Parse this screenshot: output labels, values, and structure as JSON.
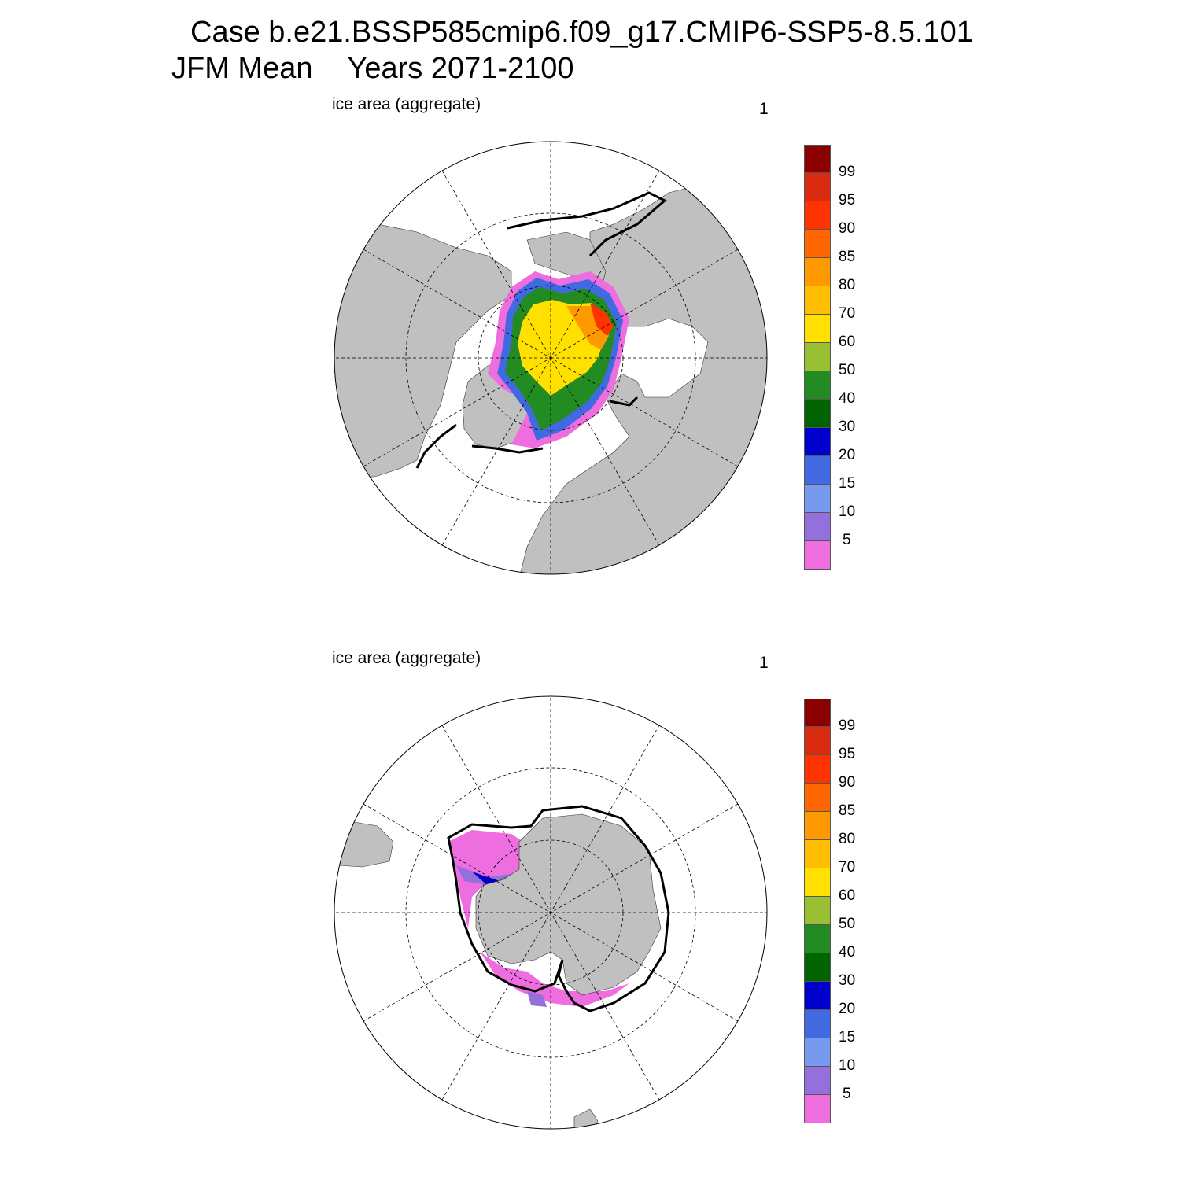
{
  "title": {
    "line1": "Case b.e21.BSSP585cmip6.f09_g17.CMIP6-SSP5-8.5.101",
    "season": "JFM Mean",
    "years": "Years 2071-2100"
  },
  "panels": [
    {
      "label": "ice area  (aggregate)",
      "number": "1",
      "hemisphere": "north"
    },
    {
      "label": "ice area  (aggregate)",
      "number": "1",
      "hemisphere": "south"
    }
  ],
  "colorbar": {
    "tick_labels": [
      "99",
      "95",
      "90",
      "85",
      "80",
      "70",
      "60",
      "50",
      "40",
      "30",
      "20",
      "15",
      "10",
      "5"
    ],
    "colors": [
      "#8b0000",
      "#d92b10",
      "#ff3300",
      "#ff6600",
      "#ff9900",
      "#ffbf00",
      "#ffe000",
      "#99bf33",
      "#228b22",
      "#006400",
      "#0000cd",
      "#4169e1",
      "#7799ee",
      "#9370db",
      "#ee6ee0"
    ]
  },
  "colors": {
    "land": "#c0c0c0",
    "ocean": "#ffffff",
    "observed_extent_line": "#000000"
  }
}
